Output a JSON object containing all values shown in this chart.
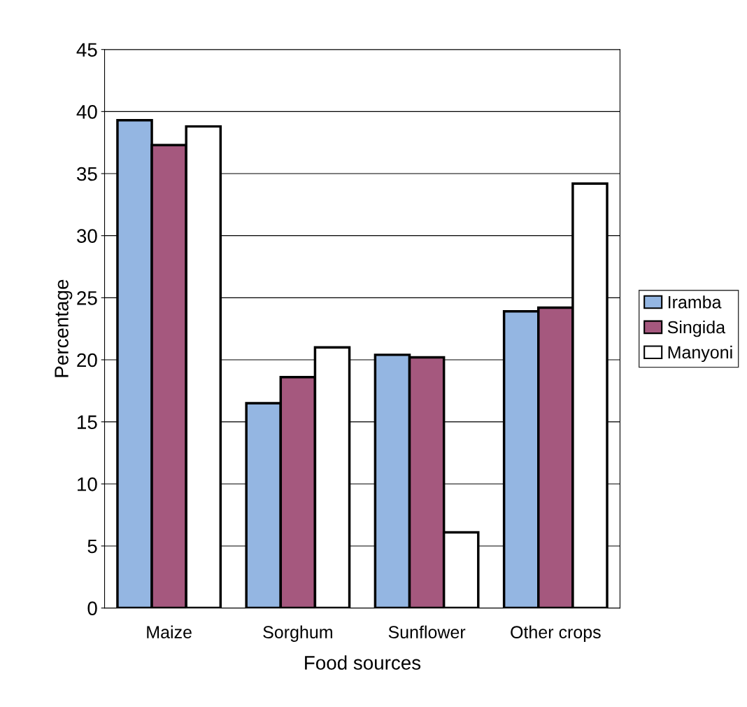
{
  "chart_data": {
    "type": "bar",
    "xlabel": "Food sources",
    "ylabel": "Percentage",
    "categories": [
      "Maize",
      "Sorghum",
      "Sunflower",
      "Other crops"
    ],
    "series": [
      {
        "name": "Iramba",
        "color": "#94b6e2",
        "values": [
          39.3,
          16.5,
          20.4,
          23.9
        ]
      },
      {
        "name": "Singida",
        "color": "#a5587e",
        "values": [
          37.3,
          18.6,
          20.2,
          24.2
        ]
      },
      {
        "name": "Manyoni",
        "color": "#ffffff",
        "values": [
          38.8,
          21.0,
          6.1,
          34.2
        ]
      }
    ],
    "ylim": [
      0,
      45
    ],
    "yticks": [
      0,
      5,
      10,
      15,
      20,
      25,
      30,
      35,
      40,
      45
    ],
    "grid": "y",
    "legend": "right"
  }
}
